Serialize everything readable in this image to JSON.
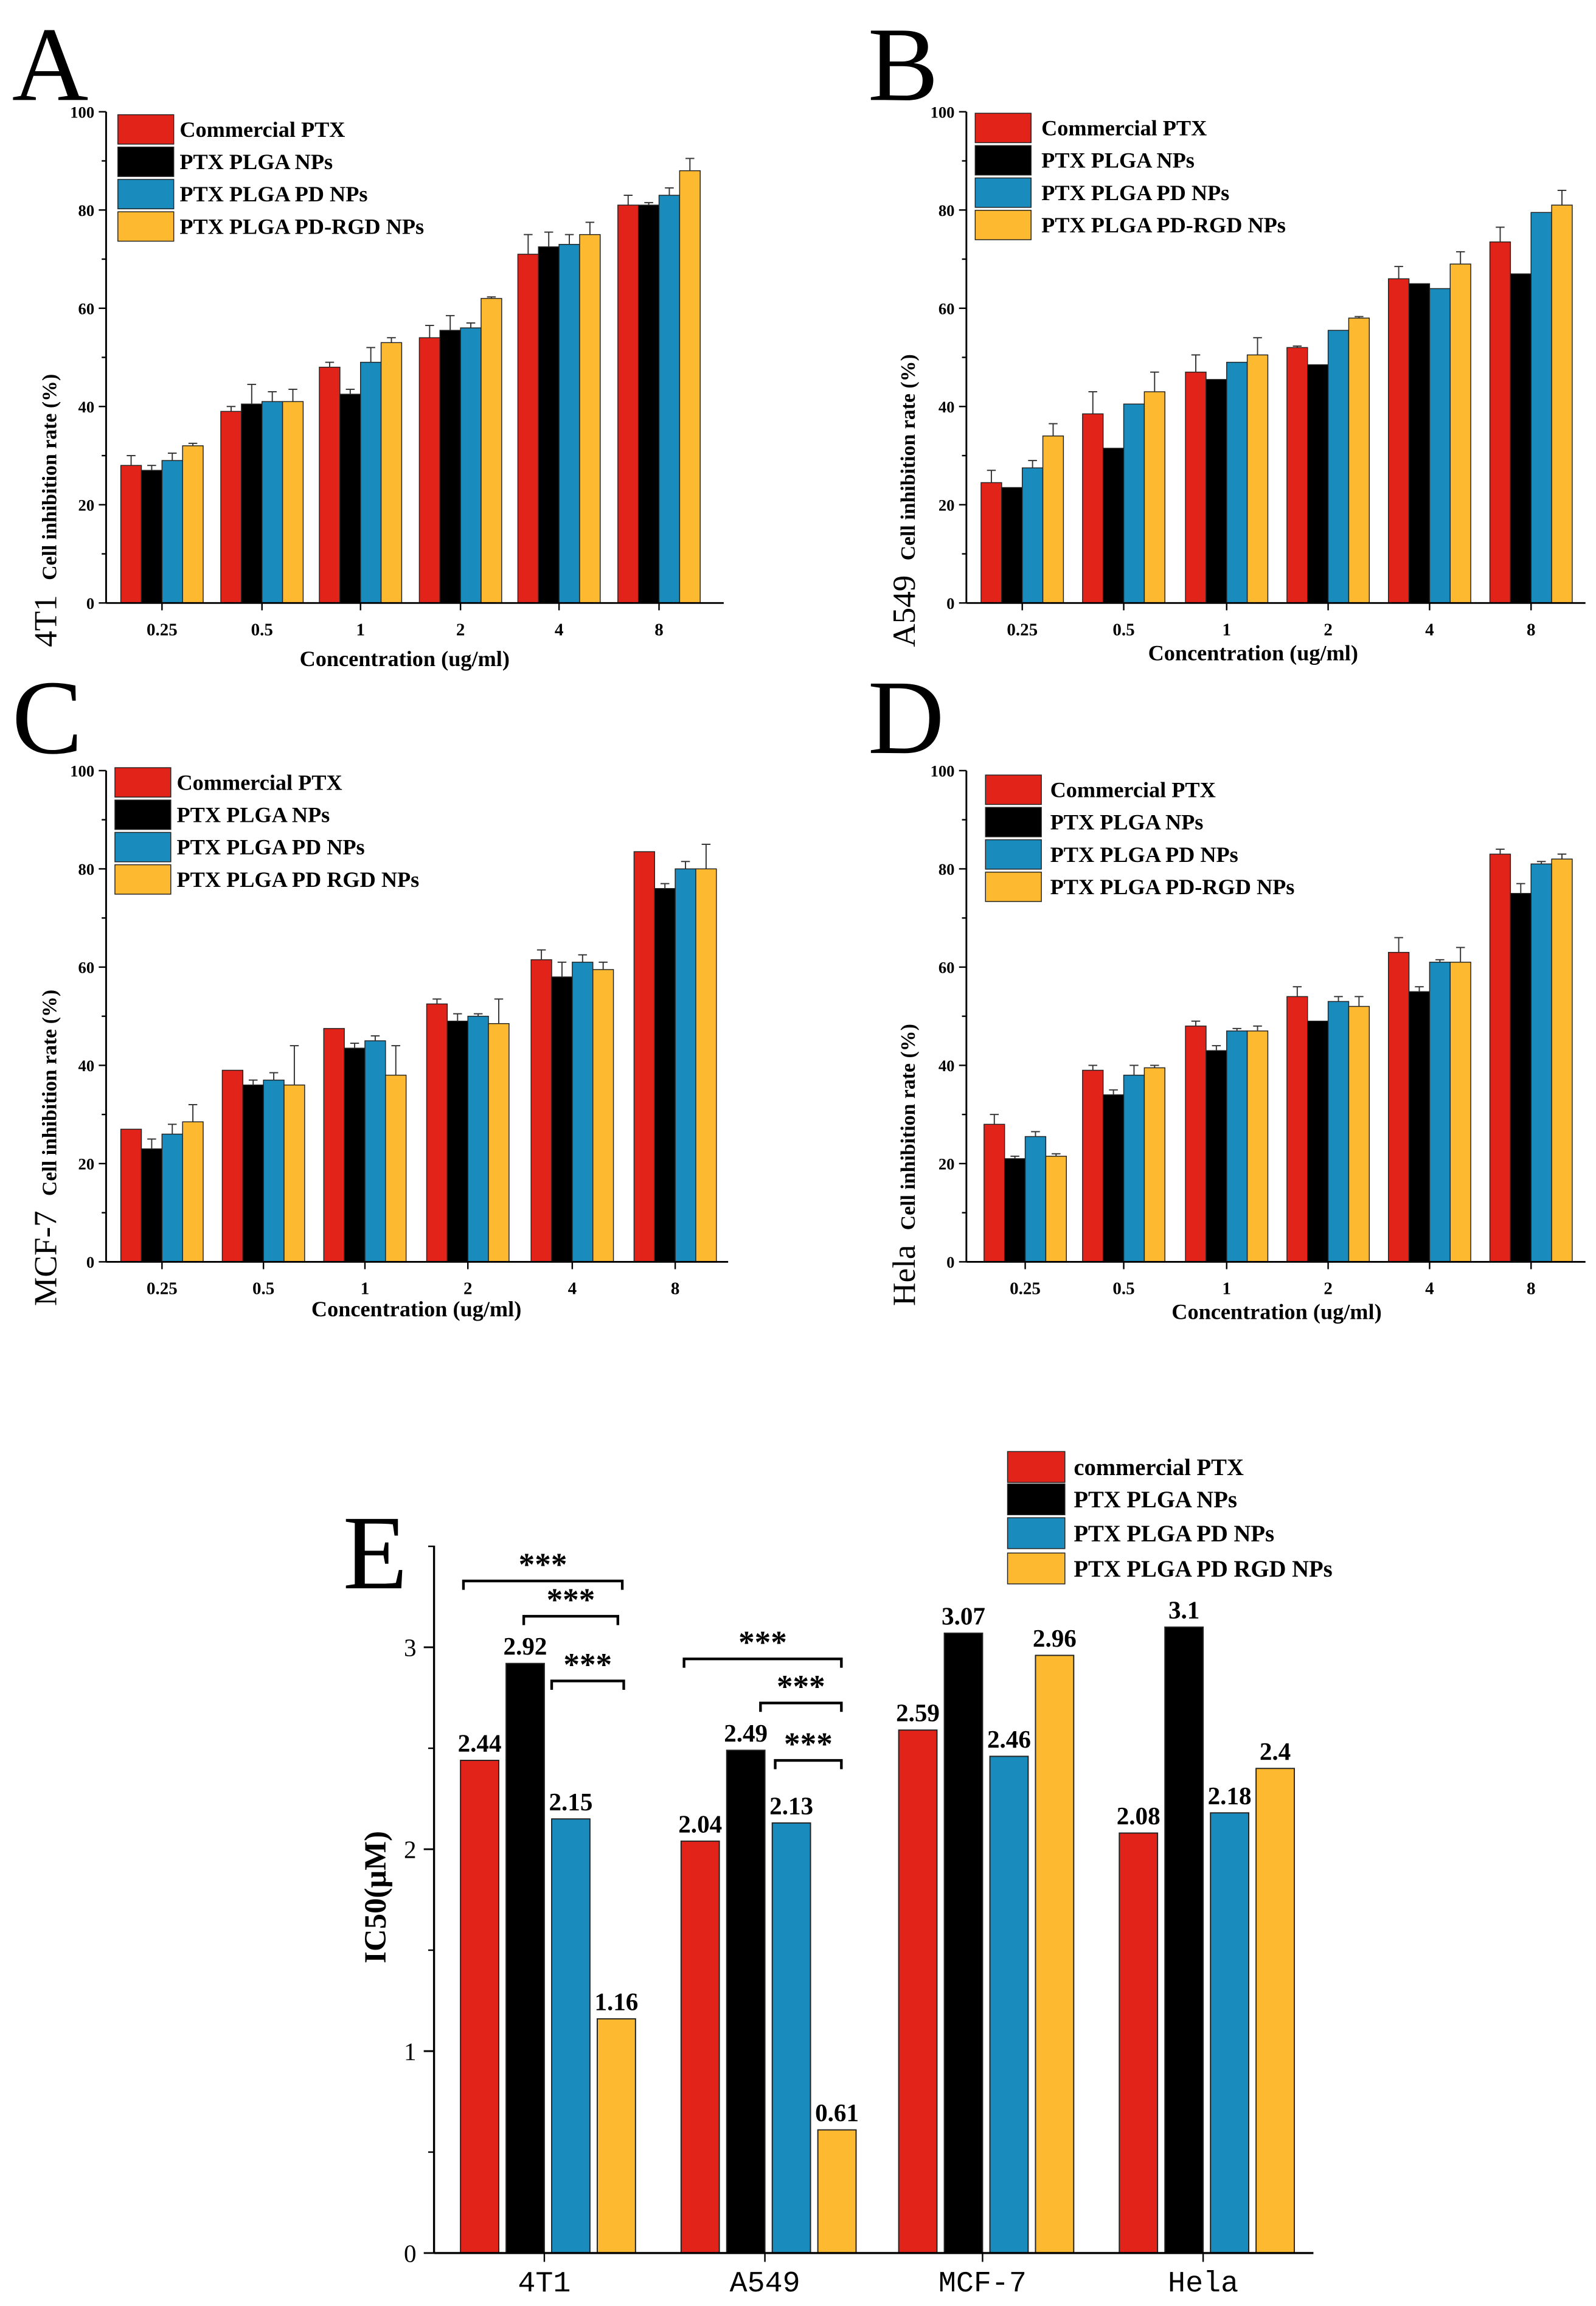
{
  "colors": {
    "red": "#e2231a",
    "black": "#000000",
    "blue": "#1a8bbd",
    "yellow": "#fdba30"
  },
  "chart_data": [
    {
      "type": "bar",
      "panel": "A",
      "cell_line": "4T1",
      "ylabel": "Cell inhibition rate (%)",
      "xlabel": "Concentration (ug/ml)",
      "ylim": [
        0,
        100
      ],
      "yticks": [
        0,
        20,
        40,
        60,
        80,
        100
      ],
      "categories": [
        "0.25",
        "0.5",
        "1",
        "2",
        "4",
        "8"
      ],
      "legend": [
        "Commercial PTX",
        "PTX PLGA NPs",
        "PTX PLGA PD NPs",
        "PTX PLGA PD-RGD NPs"
      ],
      "series": [
        {
          "name": "Commercial PTX",
          "values": [
            28,
            39,
            48,
            54,
            71,
            81
          ],
          "errors": [
            2,
            1,
            1,
            2.5,
            4,
            2
          ]
        },
        {
          "name": "PTX PLGA NPs",
          "values": [
            27,
            40.5,
            42.5,
            55.5,
            72.5,
            81
          ],
          "errors": [
            1,
            4,
            1,
            3,
            3,
            0.5
          ]
        },
        {
          "name": "PTX PLGA PD NPs",
          "values": [
            29,
            41,
            49,
            56,
            73,
            83
          ],
          "errors": [
            1.5,
            2,
            3,
            1,
            2,
            1.5
          ]
        },
        {
          "name": "PTX PLGA PD-RGD NPs",
          "values": [
            32,
            41,
            53,
            62,
            75,
            88
          ],
          "errors": [
            0.5,
            2.5,
            1,
            0.3,
            2.5,
            2.5
          ]
        }
      ]
    },
    {
      "type": "bar",
      "panel": "B",
      "cell_line": "A549",
      "ylabel": "Cell inhibition rate (%)",
      "xlabel": "Concentration (ug/ml)",
      "ylim": [
        0,
        100
      ],
      "yticks": [
        0,
        20,
        40,
        60,
        80,
        100
      ],
      "categories": [
        "0.25",
        "0.5",
        "1",
        "2",
        "4",
        "8"
      ],
      "legend": [
        "Commercial PTX",
        "PTX PLGA NPs",
        "PTX PLGA PD NPs",
        "PTX PLGA PD-RGD NPs"
      ],
      "series": [
        {
          "name": "Commercial PTX",
          "values": [
            24.5,
            38.5,
            47,
            52,
            66,
            73.5
          ],
          "errors": [
            2.5,
            4.5,
            3.5,
            0.3,
            2.5,
            3
          ]
        },
        {
          "name": "PTX PLGA NPs",
          "values": [
            23.5,
            31.5,
            45.5,
            48.5,
            65,
            67
          ],
          "errors": [
            0,
            0,
            0,
            0,
            0,
            0
          ]
        },
        {
          "name": "PTX PLGA PD NPs",
          "values": [
            27.5,
            40.5,
            49,
            55.5,
            64,
            79.5
          ],
          "errors": [
            1.5,
            0,
            0,
            0,
            0,
            0
          ]
        },
        {
          "name": "PTX PLGA PD-RGD NPs",
          "values": [
            34,
            43,
            50.5,
            58,
            69,
            81
          ],
          "errors": [
            2.5,
            4,
            3.5,
            0.3,
            2.5,
            3
          ]
        }
      ]
    },
    {
      "type": "bar",
      "panel": "C",
      "cell_line": "MCF-7",
      "ylabel": "Cell inhibition rate (%)",
      "xlabel": "Concentration (ug/ml)",
      "ylim": [
        0,
        100
      ],
      "yticks": [
        0,
        20,
        40,
        60,
        80,
        100
      ],
      "categories": [
        "0.25",
        "0.5",
        "1",
        "2",
        "4",
        "8"
      ],
      "legend": [
        "Commercial PTX",
        "PTX PLGA NPs",
        "PTX PLGA PD NPs",
        "PTX PLGA PD RGD NPs"
      ],
      "series": [
        {
          "name": "Commercial PTX",
          "values": [
            27,
            39,
            47.5,
            52.5,
            61.5,
            83.5
          ],
          "errors": [
            0,
            0,
            0,
            1,
            2,
            0
          ]
        },
        {
          "name": "PTX PLGA NPs",
          "values": [
            23,
            36,
            43.5,
            49,
            58,
            76
          ],
          "errors": [
            2,
            1,
            1,
            1.5,
            3,
            1
          ]
        },
        {
          "name": "PTX PLGA PD NPs",
          "values": [
            26,
            37,
            45,
            50,
            61,
            80
          ],
          "errors": [
            2,
            1.5,
            1,
            0.5,
            1.5,
            1.5
          ]
        },
        {
          "name": "PTX PLGA PD RGD NPs",
          "values": [
            28.5,
            36,
            38,
            48.5,
            59.5,
            80
          ],
          "errors": [
            3.5,
            8,
            6,
            5,
            1.5,
            5
          ]
        }
      ]
    },
    {
      "type": "bar",
      "panel": "D",
      "cell_line": "Hela",
      "ylabel": "Cell inhibition rate (%)",
      "xlabel": "Concentration (ug/ml)",
      "ylim": [
        0,
        100
      ],
      "yticks": [
        0,
        20,
        40,
        60,
        80,
        100
      ],
      "categories": [
        "0.25",
        "0.5",
        "1",
        "2",
        "4",
        "8"
      ],
      "legend": [
        "Commercial PTX",
        "PTX PLGA NPs",
        "PTX PLGA PD NPs",
        "PTX PLGA PD-RGD NPs"
      ],
      "series": [
        {
          "name": "Commercial PTX",
          "values": [
            28,
            39,
            48,
            54,
            63,
            83
          ],
          "errors": [
            2,
            1,
            1,
            2,
            3,
            1
          ]
        },
        {
          "name": "PTX PLGA NPs",
          "values": [
            21,
            34,
            43,
            49,
            55,
            75
          ],
          "errors": [
            0.5,
            1,
            1,
            0,
            1,
            2
          ]
        },
        {
          "name": "PTX PLGA PD NPs",
          "values": [
            25.5,
            38,
            47,
            53,
            61,
            81
          ],
          "errors": [
            1,
            2,
            0.5,
            1,
            0.5,
            0.5
          ]
        },
        {
          "name": "PTX PLGA PD-RGD NPs",
          "values": [
            21.5,
            39.5,
            47,
            52,
            61,
            82
          ],
          "errors": [
            0.5,
            0.5,
            1,
            2,
            3,
            1
          ]
        }
      ]
    },
    {
      "type": "bar",
      "panel": "E",
      "ylabel": "IC50(μM)",
      "xlabel": "",
      "ylim": [
        0,
        3.5
      ],
      "yticks": [
        0,
        1,
        2,
        3
      ],
      "categories": [
        "4T1",
        "A549",
        "MCF-7",
        "Hela"
      ],
      "legend": [
        "commercial PTX",
        "PTX PLGA NPs",
        "PTX PLGA PD NPs",
        "PTX PLGA PD RGD NPs"
      ],
      "series": [
        {
          "name": "commercial PTX",
          "values": [
            2.44,
            2.04,
            2.59,
            2.08
          ],
          "labels": [
            "2.44",
            "2.04",
            "2.59",
            "2.08"
          ]
        },
        {
          "name": "PTX PLGA NPs",
          "values": [
            2.92,
            2.49,
            3.07,
            3.1
          ],
          "labels": [
            "2.92",
            "2.49",
            "3.07",
            "3.1"
          ]
        },
        {
          "name": "PTX PLGA PD NPs",
          "values": [
            2.15,
            2.13,
            2.46,
            2.18
          ],
          "labels": [
            "2.15",
            "2.13",
            "2.46",
            "2.18"
          ]
        },
        {
          "name": "PTX PLGA PD RGD NPs",
          "values": [
            1.16,
            0.61,
            2.96,
            2.4
          ],
          "labels": [
            "1.16",
            "0.61",
            "2.96",
            "2.4"
          ]
        }
      ],
      "significance": [
        {
          "category": "4T1",
          "from": 0,
          "to": 3,
          "label": "***"
        },
        {
          "category": "4T1",
          "from": 1,
          "to": 3,
          "label": "***"
        },
        {
          "category": "4T1",
          "from": 2,
          "to": 3,
          "label": "***"
        },
        {
          "category": "A549",
          "from": 0,
          "to": 3,
          "label": "***"
        },
        {
          "category": "A549",
          "from": 1,
          "to": 3,
          "label": "***"
        },
        {
          "category": "A549",
          "from": 2,
          "to": 3,
          "label": "***"
        }
      ]
    }
  ]
}
